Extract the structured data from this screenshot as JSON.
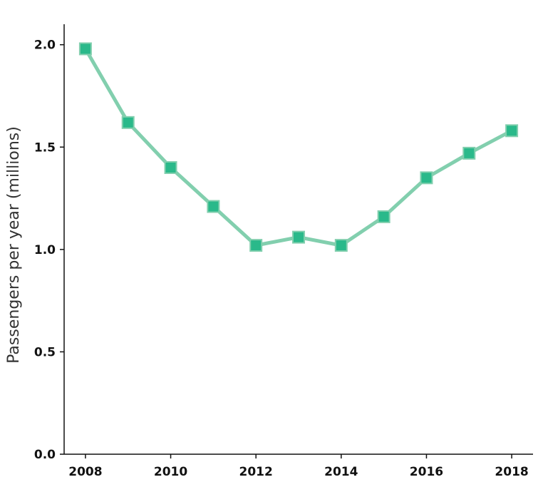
{
  "chart_data": {
    "type": "line",
    "title": "",
    "xlabel": "",
    "ylabel": "Passengers per year (millions)",
    "xlim": [
      2007.5,
      2018.5
    ],
    "ylim": [
      0,
      2.1
    ],
    "x_ticks": [
      "2008",
      "2010",
      "2012",
      "2014",
      "2016",
      "2018"
    ],
    "y_ticks": [
      "0.0",
      "0.5",
      "1.0",
      "1.5",
      "2.0"
    ],
    "grid": false,
    "colors": {
      "line": "#82cfae",
      "marker": "#2ab98a",
      "marker_edge": "#82cfae"
    },
    "series": [
      {
        "x": [
          2008,
          2009,
          2010,
          2011,
          2012,
          2013,
          2014,
          2015,
          2016,
          2017,
          2018
        ],
        "values": [
          1.98,
          1.62,
          1.4,
          1.21,
          1.02,
          1.06,
          1.02,
          1.16,
          1.35,
          1.47,
          1.58
        ]
      }
    ]
  }
}
